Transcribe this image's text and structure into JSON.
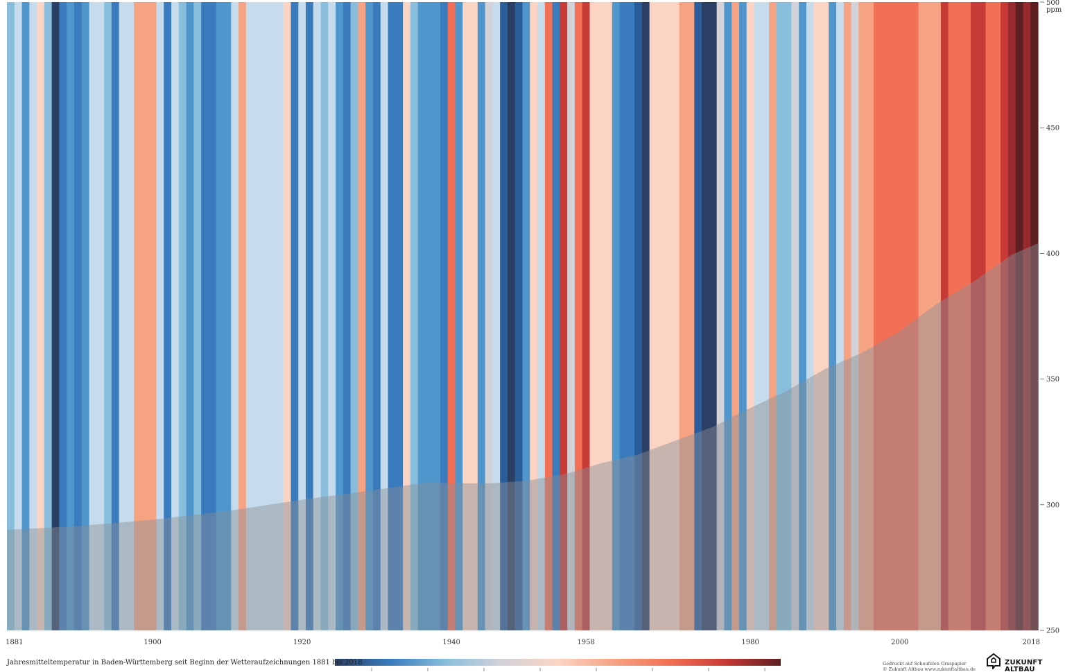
{
  "chart_data": {
    "type": "bar",
    "caption": "Jahresmitteltemperatur in Baden-Württemberg seit Beginn der Wetteraufzeichnungen 1881 bis 2018",
    "x_tick_labels": [
      "1881",
      "1900",
      "1920",
      "1940",
      "1958",
      "1980",
      "2000",
      "2018"
    ],
    "x_ticks": [
      1881,
      1900,
      1920,
      1940,
      1958,
      1980,
      2000,
      2018
    ],
    "y_right_ticks": [
      250,
      300,
      350,
      400,
      450,
      500
    ],
    "y_right_unit": "ppm",
    "ylim": [
      250,
      500
    ],
    "stripes_start_year": 1881,
    "stripes_end_year": 2018,
    "palette": [
      "#2b3e63",
      "#2b5d9a",
      "#3a7bbd",
      "#4e96cc",
      "#89bfdd",
      "#c6dcec",
      "#d2d2d8",
      "#fcd4c3",
      "#f6a383",
      "#f27055",
      "#c83a36",
      "#962a2f",
      "#5e1f22"
    ],
    "stripe_levels": [
      4,
      5,
      3,
      5,
      7,
      4,
      0,
      2,
      3,
      2,
      3,
      5,
      5,
      4,
      2,
      5,
      5,
      8,
      8,
      8,
      5,
      2,
      5,
      4,
      3,
      4,
      2,
      2,
      3,
      3,
      5,
      8,
      5,
      5,
      5,
      5,
      5,
      7,
      2,
      5,
      2,
      5,
      4,
      5,
      3,
      2,
      4,
      8,
      3,
      2,
      5,
      2,
      2,
      7,
      4,
      3,
      3,
      3,
      2,
      9,
      3,
      7,
      7,
      3,
      6,
      5,
      1,
      0,
      1,
      3,
      7,
      5,
      9,
      2,
      10,
      6,
      9,
      10,
      7,
      7,
      7,
      3,
      2,
      2,
      1,
      0,
      7,
      7,
      7,
      7,
      8,
      8,
      1,
      0,
      0,
      6,
      3,
      8,
      3,
      7,
      5,
      5,
      8,
      4,
      4,
      6,
      3,
      5,
      7,
      7,
      3,
      5,
      8,
      6,
      8,
      8,
      9,
      9,
      9,
      9,
      9,
      9,
      8,
      8,
      8,
      10,
      9,
      9,
      9,
      10,
      10,
      9,
      9,
      10,
      11,
      12,
      11,
      12
    ],
    "co2_series": {
      "years": [
        1881,
        1890,
        1900,
        1910,
        1920,
        1930,
        1937,
        1940,
        1945,
        1950,
        1955,
        1960,
        1965,
        1970,
        1975,
        1980,
        1985,
        1990,
        1995,
        2000,
        2005,
        2010,
        2015,
        2018
      ],
      "values": [
        290,
        291.5,
        294,
        297.5,
        302,
        306,
        309,
        308.5,
        308.5,
        309.5,
        312,
        316.5,
        320,
        325.5,
        331,
        338.5,
        345.5,
        354,
        360.5,
        369,
        380,
        389,
        399.5,
        404
      ]
    },
    "legend": {
      "type": "colorbar",
      "colors": [
        "#2b3e63",
        "#3a7bbd",
        "#89bfdd",
        "#d2d2d8",
        "#fcd4c3",
        "#f6a383",
        "#f27055",
        "#c83a36",
        "#5e1f22"
      ]
    }
  },
  "printed_note": {
    "line1": "Gedruckt auf Scheufelen Graspapier",
    "line2": "© Zukunft Altbau www.zukunftaltbau.de"
  },
  "logo": {
    "line1": "ZUKUNFT",
    "line2": "ALTBAU"
  }
}
